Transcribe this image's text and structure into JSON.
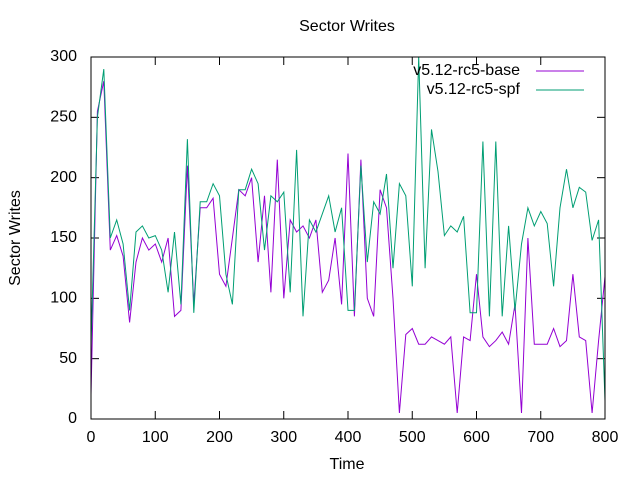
{
  "chart_data": {
    "type": "line",
    "title": "Sector Writes",
    "xlabel": "Time",
    "ylabel": "Sector Writes",
    "x": [
      0,
      10,
      20,
      30,
      40,
      50,
      60,
      70,
      80,
      90,
      100,
      110,
      120,
      130,
      140,
      150,
      160,
      170,
      180,
      190,
      200,
      210,
      220,
      230,
      240,
      250,
      260,
      270,
      280,
      290,
      300,
      310,
      320,
      330,
      340,
      350,
      360,
      370,
      380,
      390,
      400,
      410,
      420,
      430,
      440,
      450,
      460,
      470,
      480,
      490,
      500,
      510,
      520,
      530,
      540,
      550,
      560,
      570,
      580,
      590,
      600,
      610,
      620,
      630,
      640,
      650,
      660,
      670,
      680,
      690,
      700,
      710,
      720,
      730,
      740,
      750,
      760,
      770,
      780,
      790,
      800
    ],
    "series": [
      {
        "name": "v5.12-rc5-base",
        "color": "#9400d3",
        "values": [
          20,
          255,
          280,
          140,
          152,
          135,
          80,
          130,
          150,
          140,
          145,
          130,
          150,
          85,
          90,
          210,
          95,
          175,
          175,
          183,
          120,
          110,
          150,
          190,
          185,
          200,
          130,
          185,
          105,
          215,
          100,
          165,
          155,
          160,
          150,
          165,
          105,
          115,
          150,
          95,
          220,
          85,
          215,
          100,
          85,
          190,
          175,
          100,
          5,
          70,
          75,
          62,
          62,
          68,
          65,
          62,
          68,
          5,
          68,
          65,
          120,
          68,
          60,
          65,
          72,
          62,
          95,
          5,
          150,
          62,
          62,
          62,
          75,
          60,
          65,
          120,
          68,
          65,
          5,
          65,
          118
        ]
      },
      {
        "name": "v5.12-rc5-spf",
        "color": "#009e73",
        "values": [
          60,
          250,
          290,
          150,
          165,
          145,
          90,
          155,
          160,
          150,
          152,
          140,
          105,
          155,
          95,
          232,
          88,
          180,
          180,
          195,
          185,
          120,
          95,
          190,
          190,
          207,
          195,
          140,
          185,
          180,
          188,
          105,
          223,
          85,
          165,
          155,
          170,
          185,
          155,
          175,
          90,
          90,
          210,
          130,
          180,
          170,
          203,
          125,
          195,
          185,
          110,
          300,
          125,
          240,
          205,
          152,
          160,
          155,
          168,
          88,
          88,
          230,
          85,
          230,
          85,
          160,
          90,
          145,
          175,
          160,
          172,
          162,
          110,
          175,
          207,
          175,
          192,
          188,
          148,
          165,
          15
        ]
      }
    ],
    "xlim": [
      0,
      800
    ],
    "xticks": [
      0,
      100,
      200,
      300,
      400,
      500,
      600,
      700,
      800
    ],
    "ylim": [
      0,
      300
    ],
    "yticks": [
      0,
      50,
      100,
      150,
      200,
      250,
      300
    ],
    "legend": "top-right"
  }
}
